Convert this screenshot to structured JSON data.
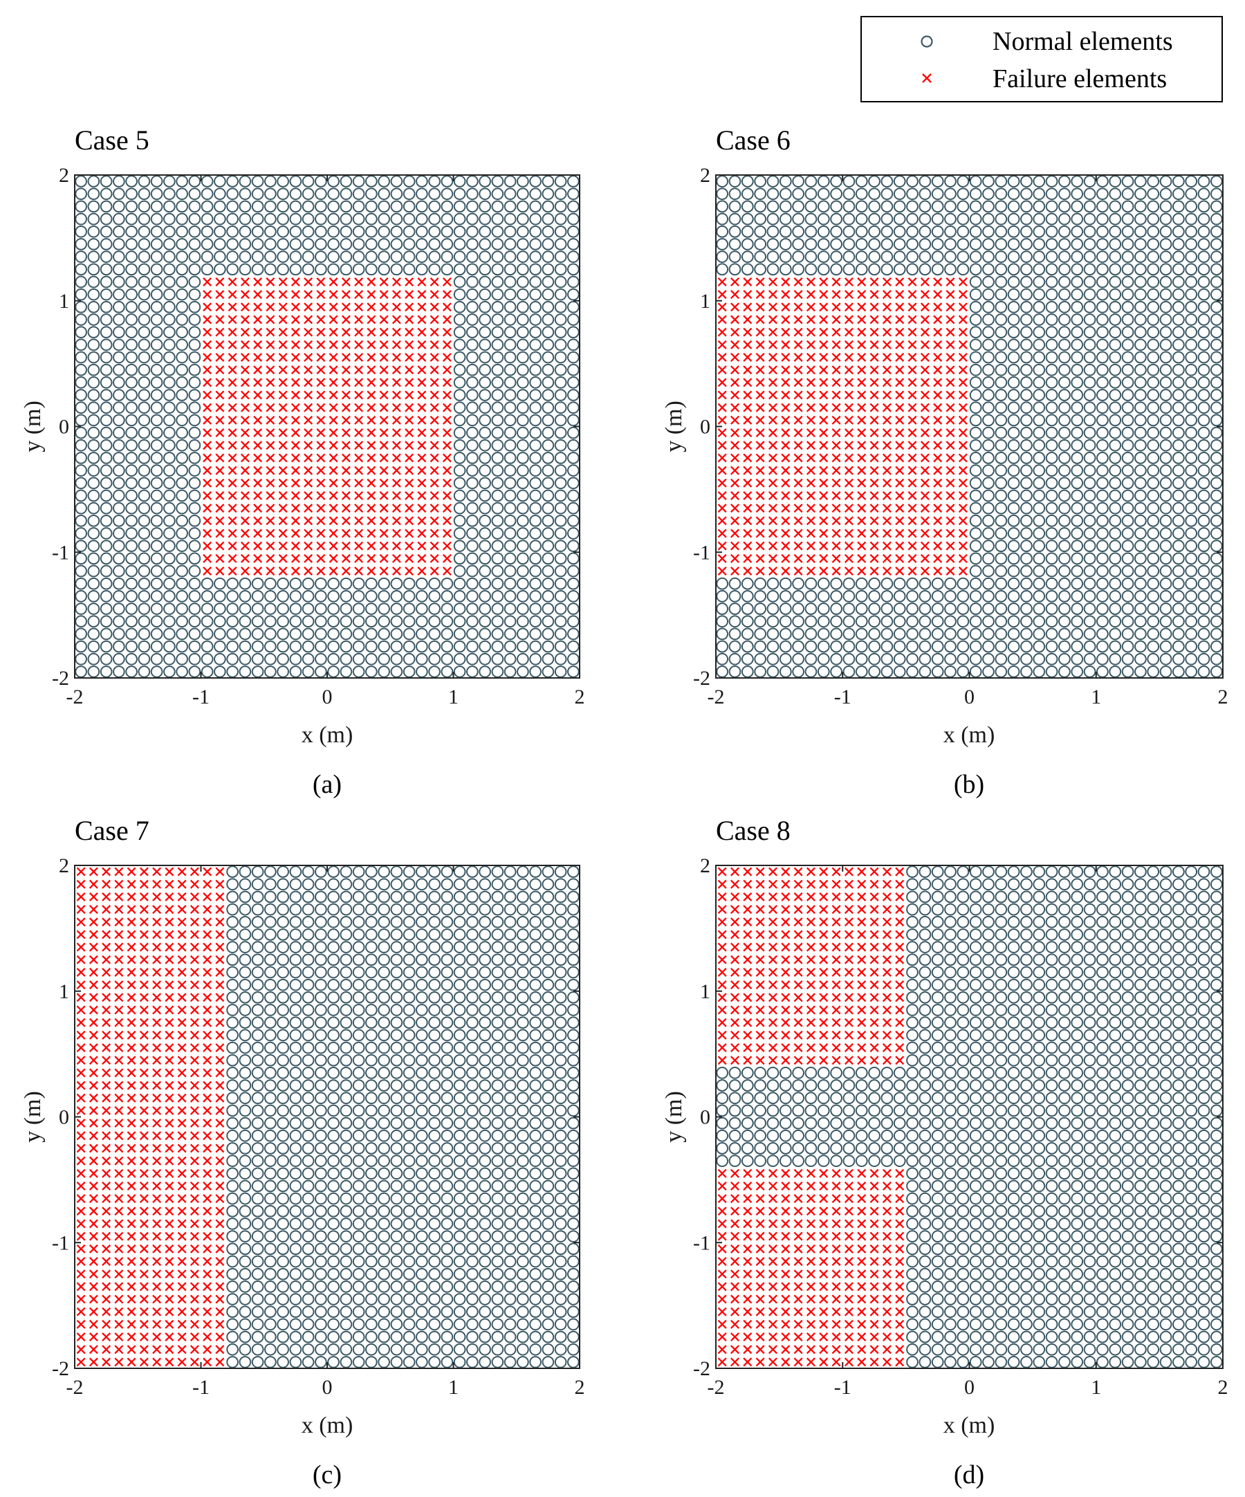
{
  "legend": {
    "normal_label": "Normal elements",
    "failure_label": "Failure elements",
    "normal_color": "#3d5a66",
    "failure_color": "#ff0000"
  },
  "chart_data": [
    {
      "type": "scatter",
      "title": "Case 5",
      "caption": "(a)",
      "xlabel": "x (m)",
      "ylabel": "y (m)",
      "xlim": [
        -2,
        2
      ],
      "ylim": [
        -2,
        2
      ],
      "xticks": [
        "-2",
        "-1",
        "0",
        "1",
        "2"
      ],
      "yticks": [
        "-2",
        "-1",
        "0",
        "1",
        "2"
      ],
      "grid": {
        "x_start": -1.95,
        "y_start": -1.95,
        "step": 0.1,
        "count": 40
      },
      "failure_regions": [
        {
          "x": [
            -1.0,
            1.0
          ],
          "y": [
            -1.2,
            1.2
          ]
        }
      ]
    },
    {
      "type": "scatter",
      "title": "Case 6",
      "caption": "(b)",
      "xlabel": "x (m)",
      "ylabel": "y (m)",
      "xlim": [
        -2,
        2
      ],
      "ylim": [
        -2,
        2
      ],
      "xticks": [
        "-2",
        "-1",
        "0",
        "1",
        "2"
      ],
      "yticks": [
        "-2",
        "-1",
        "0",
        "1",
        "2"
      ],
      "grid": {
        "x_start": -1.95,
        "y_start": -1.95,
        "step": 0.1,
        "count": 40
      },
      "failure_regions": [
        {
          "x": [
            -2.0,
            0.0
          ],
          "y": [
            -1.2,
            1.2
          ]
        }
      ]
    },
    {
      "type": "scatter",
      "title": "Case 7",
      "caption": "(c)",
      "xlabel": "x (m)",
      "ylabel": "y (m)",
      "xlim": [
        -2,
        2
      ],
      "ylim": [
        -2,
        2
      ],
      "xticks": [
        "-2",
        "-1",
        "0",
        "1",
        "2"
      ],
      "yticks": [
        "-2",
        "-1",
        "0",
        "1",
        "2"
      ],
      "grid": {
        "x_start": -1.95,
        "y_start": -1.95,
        "step": 0.1,
        "count": 40
      },
      "failure_regions": [
        {
          "x": [
            -2.0,
            -0.8
          ],
          "y": [
            -2.0,
            2.0
          ]
        }
      ]
    },
    {
      "type": "scatter",
      "title": "Case 8",
      "caption": "(d)",
      "xlabel": "x (m)",
      "ylabel": "y (m)",
      "xlim": [
        -2,
        2
      ],
      "ylim": [
        -2,
        2
      ],
      "xticks": [
        "-2",
        "-1",
        "0",
        "1",
        "2"
      ],
      "yticks": [
        "-2",
        "-1",
        "0",
        "1",
        "2"
      ],
      "grid": {
        "x_start": -1.95,
        "y_start": -1.95,
        "step": 0.1,
        "count": 40
      },
      "failure_regions": [
        {
          "x": [
            -2.0,
            -0.5
          ],
          "y": [
            0.4,
            2.0
          ]
        },
        {
          "x": [
            -2.0,
            -0.5
          ],
          "y": [
            -2.0,
            -0.4
          ]
        }
      ]
    }
  ]
}
